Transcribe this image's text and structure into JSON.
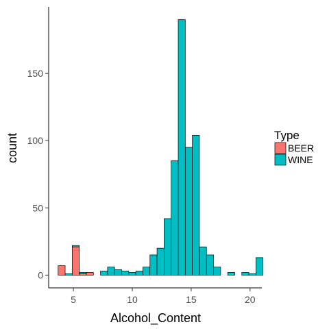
{
  "chart_data": {
    "type": "bar",
    "xlabel": "Alcohol_Content",
    "ylabel": "count",
    "xlim": [
      2.9,
      21.0
    ],
    "ylim": [
      -9.5,
      199.5
    ],
    "xticks": [
      5,
      10,
      15,
      20
    ],
    "yticks": [
      0,
      50,
      100,
      150
    ],
    "bin_width": 0.6,
    "grid": false,
    "legend": {
      "title": "Type",
      "placement": "right"
    },
    "series": [
      {
        "name": "BEER",
        "color": "#F8766D",
        "bins": [
          {
            "x": 4.0,
            "count": 7
          },
          {
            "x": 4.6,
            "count": 0
          },
          {
            "x": 5.2,
            "count": 21
          },
          {
            "x": 5.8,
            "count": 1
          },
          {
            "x": 6.4,
            "count": 2
          }
        ]
      },
      {
        "name": "WINE",
        "color": "#00BFC4",
        "bins": [
          {
            "x": 4.6,
            "count": 1
          },
          {
            "x": 5.2,
            "count": 1
          },
          {
            "x": 5.8,
            "count": 1
          },
          {
            "x": 7.6,
            "count": 3
          },
          {
            "x": 8.2,
            "count": 6
          },
          {
            "x": 8.8,
            "count": 4
          },
          {
            "x": 9.4,
            "count": 3
          },
          {
            "x": 10.0,
            "count": 2
          },
          {
            "x": 10.6,
            "count": 3
          },
          {
            "x": 11.2,
            "count": 6
          },
          {
            "x": 11.8,
            "count": 15
          },
          {
            "x": 12.4,
            "count": 20
          },
          {
            "x": 13.0,
            "count": 42
          },
          {
            "x": 13.6,
            "count": 85
          },
          {
            "x": 14.2,
            "count": 190
          },
          {
            "x": 14.8,
            "count": 95
          },
          {
            "x": 15.4,
            "count": 104
          },
          {
            "x": 16.0,
            "count": 21
          },
          {
            "x": 16.6,
            "count": 15
          },
          {
            "x": 17.2,
            "count": 6
          },
          {
            "x": 18.4,
            "count": 2
          },
          {
            "x": 19.6,
            "count": 2
          },
          {
            "x": 20.2,
            "count": 1
          },
          {
            "x": 20.8,
            "count": 13
          }
        ]
      }
    ]
  }
}
